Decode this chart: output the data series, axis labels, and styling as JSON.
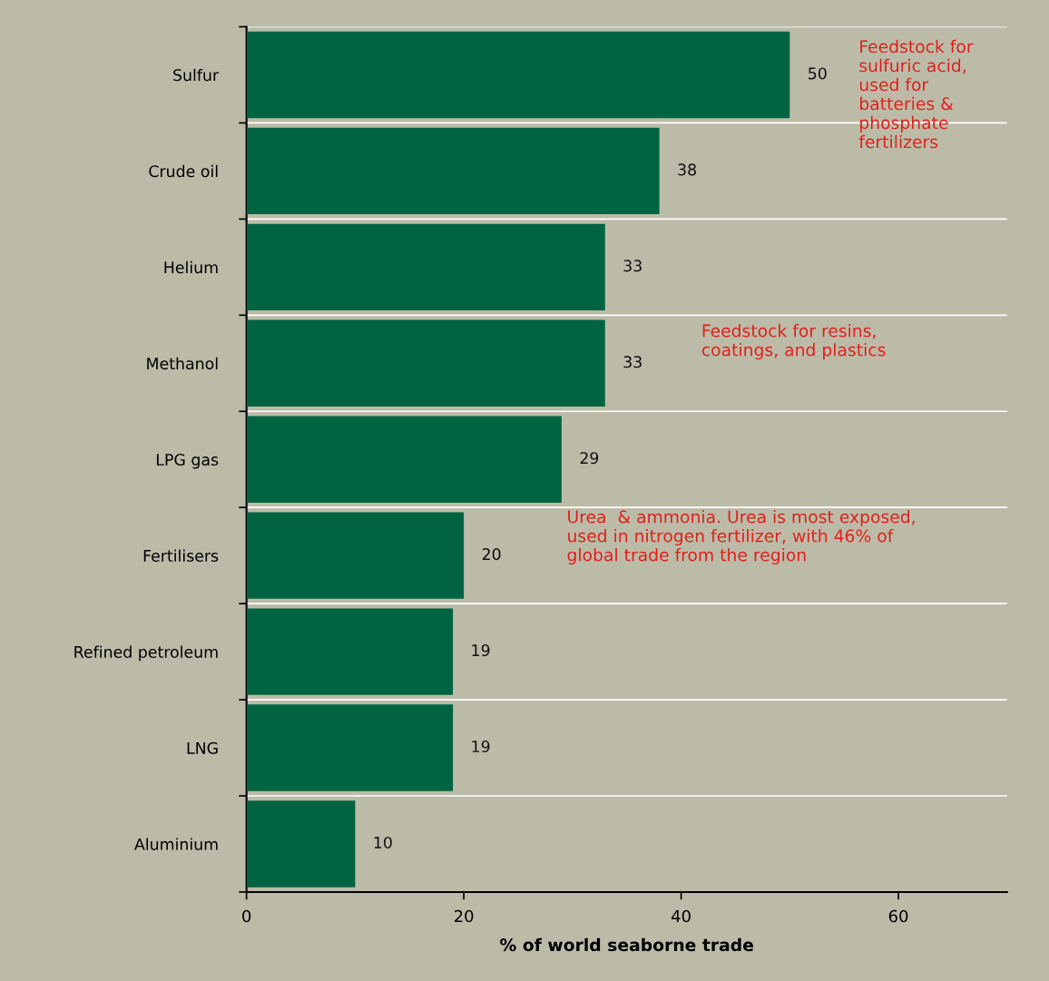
{
  "chart_data": {
    "type": "bar",
    "orientation": "horizontal",
    "xlabel": "% of world seaborne trade",
    "categories": [
      "Sulfur",
      "Crude oil",
      "Helium",
      "Methanol",
      "LPG gas",
      "Fertilisers",
      "Refined petroleum",
      "LNG",
      "Aluminium"
    ],
    "values": [
      50,
      38,
      33,
      33,
      29,
      20,
      19,
      19,
      10
    ],
    "color": "#006341",
    "xlim": [
      0,
      70
    ],
    "xticks": [
      0,
      20,
      40,
      60
    ],
    "grid": "y",
    "data_labels": true,
    "annotations": [
      "Feedstock for\nsulfuric acid,\nused for\nbatteries &\nphosphate\nfertilizers",
      "Feedstock for resins,\ncoatings, and plastics",
      "Urea  & ammonia. Urea is most exposed,\nused in nitrogen fertilizer, with 46% of\nglobal trade from the region"
    ]
  }
}
